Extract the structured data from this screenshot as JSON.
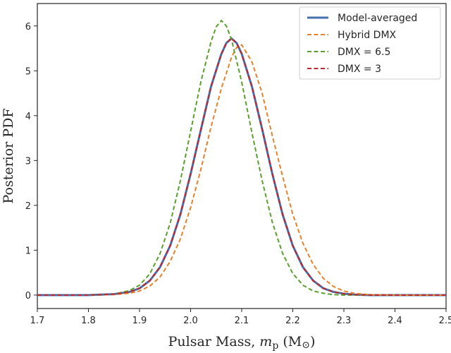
{
  "chart_data": {
    "type": "line",
    "xlabel": "Pulsar Mass,",
    "xlabel_math": "m",
    "xlabel_sub": "p",
    "xlabel_unit_open": " (M",
    "xlabel_unit_symbol": "⊙",
    "xlabel_unit_close": ")",
    "ylabel": "Posterior PDF",
    "xlim": [
      1.7,
      2.5
    ],
    "ylim": [
      -0.3,
      6.5
    ],
    "x_ticks": [
      "1.7",
      "1.8",
      "1.9",
      "2.0",
      "2.1",
      "2.2",
      "2.3",
      "2.4",
      "2.5"
    ],
    "y_ticks": [
      "0",
      "1",
      "2",
      "3",
      "4",
      "5",
      "6"
    ],
    "grid": false,
    "legend_position": "top-right",
    "series": [
      {
        "name": "Model-averaged",
        "color": "#4472b0",
        "style": "solid",
        "x": [
          1.7,
          1.8,
          1.85,
          1.88,
          1.9,
          1.92,
          1.94,
          1.96,
          1.98,
          2.0,
          2.02,
          2.04,
          2.06,
          2.07,
          2.08,
          2.09,
          2.1,
          2.12,
          2.14,
          2.16,
          2.18,
          2.2,
          2.22,
          2.24,
          2.26,
          2.28,
          2.3,
          2.32,
          2.35,
          2.4,
          2.5
        ],
        "y": [
          0.0,
          0.0,
          0.02,
          0.07,
          0.15,
          0.32,
          0.62,
          1.1,
          1.8,
          2.7,
          3.68,
          4.65,
          5.37,
          5.62,
          5.72,
          5.62,
          5.38,
          4.65,
          3.7,
          2.7,
          1.8,
          1.1,
          0.62,
          0.32,
          0.15,
          0.07,
          0.03,
          0.01,
          0.0,
          0.0,
          0.0
        ]
      },
      {
        "name": "Hybrid DMX",
        "color": "#e8822a",
        "style": "dashed",
        "x": [
          1.7,
          1.8,
          1.85,
          1.88,
          1.9,
          1.92,
          1.94,
          1.96,
          1.98,
          2.0,
          2.02,
          2.04,
          2.06,
          2.08,
          2.09,
          2.1,
          2.12,
          2.14,
          2.16,
          2.18,
          2.2,
          2.22,
          2.24,
          2.26,
          2.28,
          2.3,
          2.32,
          2.35,
          2.4,
          2.5
        ],
        "y": [
          0.0,
          0.0,
          0.01,
          0.04,
          0.09,
          0.2,
          0.4,
          0.75,
          1.25,
          1.95,
          2.8,
          3.75,
          4.6,
          5.3,
          5.52,
          5.58,
          5.2,
          4.5,
          3.55,
          2.65,
          1.8,
          1.15,
          0.68,
          0.37,
          0.19,
          0.09,
          0.04,
          0.01,
          0.0,
          0.0
        ]
      },
      {
        "name": "DMX = 6.5",
        "color": "#5aa02c",
        "style": "dashed",
        "x": [
          1.7,
          1.8,
          1.85,
          1.88,
          1.9,
          1.92,
          1.94,
          1.96,
          1.98,
          2.0,
          2.02,
          2.04,
          2.05,
          2.06,
          2.07,
          2.08,
          2.1,
          2.12,
          2.14,
          2.16,
          2.18,
          2.2,
          2.22,
          2.24,
          2.26,
          2.28,
          2.3,
          2.35,
          2.4,
          2.5
        ],
        "y": [
          0.0,
          0.0,
          0.02,
          0.1,
          0.22,
          0.47,
          0.92,
          1.6,
          2.55,
          3.65,
          4.75,
          5.65,
          5.98,
          6.12,
          6.0,
          5.7,
          4.75,
          3.62,
          2.55,
          1.62,
          0.93,
          0.48,
          0.22,
          0.09,
          0.04,
          0.01,
          0.0,
          0.0,
          0.0,
          0.0
        ]
      },
      {
        "name": "DMX = 3",
        "color": "#c0282d",
        "style": "dashed",
        "x": [
          1.7,
          1.8,
          1.85,
          1.88,
          1.9,
          1.92,
          1.94,
          1.96,
          1.98,
          2.0,
          2.02,
          2.04,
          2.06,
          2.07,
          2.08,
          2.09,
          2.1,
          2.12,
          2.14,
          2.16,
          2.18,
          2.2,
          2.22,
          2.24,
          2.26,
          2.28,
          2.3,
          2.32,
          2.35,
          2.4,
          2.5
        ],
        "y": [
          0.0,
          0.0,
          0.02,
          0.07,
          0.15,
          0.32,
          0.62,
          1.1,
          1.8,
          2.7,
          3.68,
          4.65,
          5.37,
          5.62,
          5.72,
          5.62,
          5.38,
          4.65,
          3.7,
          2.7,
          1.8,
          1.1,
          0.62,
          0.32,
          0.15,
          0.07,
          0.03,
          0.01,
          0.0,
          0.0,
          0.0
        ]
      }
    ]
  }
}
